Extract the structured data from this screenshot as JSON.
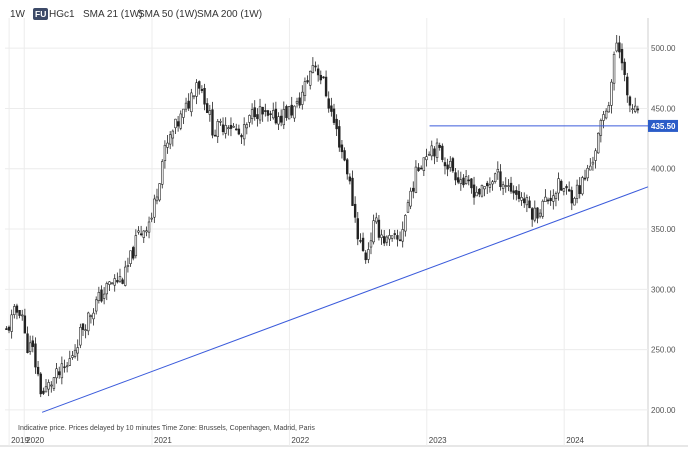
{
  "header": {
    "interval": "1W",
    "badge": "FU",
    "symbol": "HGc1",
    "indicators": [
      "SMA 21 (1W)",
      "SMA 50 (1W)",
      "SMA 200 (1W)"
    ]
  },
  "footnote": "Indicative price. Prices delayed by 10 minutes    Time Zone: Brussels, Copenhagen, Madrid, Paris",
  "chart_data": {
    "type": "candlestick",
    "title": "",
    "xlabel": "",
    "ylabel": "",
    "ylim": [
      185,
      525
    ],
    "y_ticks": [
      200,
      250,
      300,
      350,
      400,
      450,
      500
    ],
    "x_ticks": [
      {
        "label": "2019",
        "t": 2019.96
      },
      {
        "label": "2020",
        "t": 2020.07
      },
      {
        "label": "2021",
        "t": 2021.0
      },
      {
        "label": "2022",
        "t": 2022.0
      },
      {
        "label": "2023",
        "t": 2023.0
      },
      {
        "label": "2024",
        "t": 2024.0
      }
    ],
    "x_range": [
      2019.93,
      2024.61
    ],
    "grid": true,
    "price_path": [
      [
        2019.94,
        265
      ],
      [
        2020.0,
        280
      ],
      [
        2020.05,
        285
      ],
      [
        2020.08,
        255
      ],
      [
        2020.13,
        250
      ],
      [
        2020.2,
        212
      ],
      [
        2020.28,
        225
      ],
      [
        2020.38,
        235
      ],
      [
        2020.5,
        270
      ],
      [
        2020.6,
        290
      ],
      [
        2020.7,
        305
      ],
      [
        2020.8,
        310
      ],
      [
        2020.9,
        345
      ],
      [
        2021.0,
        360
      ],
      [
        2021.08,
        410
      ],
      [
        2021.15,
        430
      ],
      [
        2021.25,
        450
      ],
      [
        2021.33,
        475
      ],
      [
        2021.38,
        460
      ],
      [
        2021.45,
        430
      ],
      [
        2021.55,
        440
      ],
      [
        2021.65,
        425
      ],
      [
        2021.75,
        450
      ],
      [
        2021.85,
        440
      ],
      [
        2021.95,
        445
      ],
      [
        2022.05,
        450
      ],
      [
        2022.12,
        470
      ],
      [
        2022.18,
        490
      ],
      [
        2022.25,
        470
      ],
      [
        2022.32,
        440
      ],
      [
        2022.42,
        400
      ],
      [
        2022.5,
        345
      ],
      [
        2022.55,
        325
      ],
      [
        2022.62,
        355
      ],
      [
        2022.7,
        340
      ],
      [
        2022.8,
        340
      ],
      [
        2022.88,
        380
      ],
      [
        2022.95,
        405
      ],
      [
        2023.03,
        420
      ],
      [
        2023.08,
        415
      ],
      [
        2023.15,
        405
      ],
      [
        2023.22,
        395
      ],
      [
        2023.3,
        385
      ],
      [
        2023.4,
        380
      ],
      [
        2023.5,
        395
      ],
      [
        2023.6,
        385
      ],
      [
        2023.7,
        375
      ],
      [
        2023.78,
        362
      ],
      [
        2023.88,
        375
      ],
      [
        2023.96,
        385
      ],
      [
        2024.05,
        378
      ],
      [
        2024.12,
        385
      ],
      [
        2024.2,
        405
      ],
      [
        2024.28,
        440
      ],
      [
        2024.33,
        460
      ],
      [
        2024.38,
        505
      ],
      [
        2024.42,
        495
      ],
      [
        2024.46,
        455
      ],
      [
        2024.5,
        450
      ],
      [
        2024.54,
        442
      ]
    ],
    "annotations": {
      "horizontal_level": {
        "value": 435.5,
        "label": "435.50",
        "from_t": 2023.02,
        "color": "#3b5bdb"
      },
      "trendline": {
        "from": [
          2020.2,
          198
        ],
        "to": [
          2024.61,
          385
        ],
        "color": "#3b5bdb"
      }
    },
    "colors": {
      "up": "#ffffff",
      "down": "#222222",
      "wick": "#222222",
      "level_label_bg": "#2b5cc8"
    }
  }
}
